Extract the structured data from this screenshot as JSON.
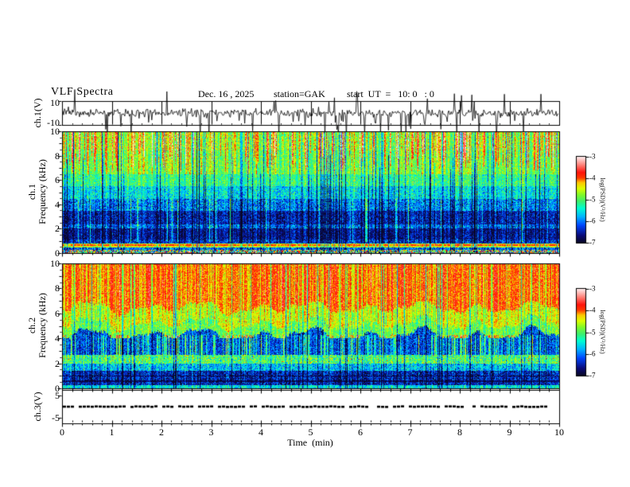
{
  "header": {
    "title": "VLF Spectra",
    "date": "Dec. 16 , 2025",
    "station": "station=GAK",
    "start_ut": "start  UT  =   10: 0   : 0"
  },
  "axes": {
    "time": {
      "label": "Time  (min)",
      "tick_labels": [
        "0",
        "1",
        "2",
        "3",
        "4",
        "5",
        "6",
        "7",
        "8",
        "9",
        "10"
      ],
      "tick_values": [
        0,
        1,
        2,
        3,
        4,
        5,
        6,
        7,
        8,
        9,
        10
      ],
      "minor_step": 0.2,
      "range": [
        0,
        10
      ]
    },
    "ch1_wave": {
      "label": "ch.1(V)",
      "tick_labels": [
        "10",
        "-10"
      ],
      "tick_values": [
        10,
        -10
      ],
      "range": [
        -10,
        10
      ]
    },
    "ch1_spec": {
      "label_channel": "ch.1",
      "label_axis": "Frequency (kHz)",
      "tick_labels": [
        "0",
        "2",
        "4",
        "6",
        "8",
        "10"
      ],
      "tick_values": [
        0,
        2,
        4,
        6,
        8,
        10
      ],
      "minor_step": 0.5,
      "range": [
        0,
        10
      ]
    },
    "ch2_spec": {
      "label_channel": "ch.2",
      "label_axis": "Frequency (kHz)",
      "tick_labels": [
        "0",
        "2",
        "4",
        "6",
        "8",
        "10"
      ],
      "tick_values": [
        0,
        2,
        4,
        6,
        8,
        10
      ],
      "minor_step": 0.5,
      "range": [
        0,
        10
      ]
    },
    "ch3_wave": {
      "label": "ch.3(V)",
      "tick_labels": [
        "5",
        "-5"
      ],
      "tick_values": [
        5,
        -5
      ],
      "range": [
        -7.5,
        7.5
      ]
    }
  },
  "colorbars": [
    {
      "label": "log(PSD)(V²/Hz)",
      "tick_labels": [
        "-3",
        "-4",
        "-5",
        "-6",
        "-7"
      ],
      "tick_values": [
        -3,
        -4,
        -5,
        -6,
        -7
      ],
      "range": [
        -7,
        -3
      ]
    },
    {
      "label": "log(PSD)(V²/Hz)",
      "tick_labels": [
        "-3",
        "-4",
        "-5",
        "-6",
        "-7"
      ],
      "tick_values": [
        -3,
        -4,
        -5,
        -6,
        -7
      ],
      "range": [
        -7,
        -3
      ]
    }
  ],
  "colors": {
    "background": "#ffffff",
    "axis": "#000000",
    "trace": "#000000",
    "colormap_low": "#080828",
    "colormap_mid": "#3cf06e",
    "colormap_high": "#ffebeb"
  },
  "chart_data": [
    {
      "id": "ch1_waveform",
      "type": "line",
      "panel": "wave",
      "description": "noisy broadband voltage trace centered at 0 V with impulsive spikes, several reaching -10 V",
      "xlim": [
        0,
        10
      ],
      "ylim": [
        -10,
        10
      ],
      "baseline_v": 0,
      "noise_sigma_v": 0.85,
      "spikes": {
        "count": 60,
        "min_v": 2,
        "max_v": 9,
        "negative_fraction": 0.72,
        "large_negative_count": 9
      }
    },
    {
      "id": "ch1_spectrogram",
      "type": "heatmap",
      "panel": "spec1",
      "xlim": [
        0,
        10
      ],
      "flim_khz": [
        0,
        10
      ],
      "zlim_log_psd": [
        -7,
        -3
      ],
      "bands": [
        {
          "f": [
            0,
            0.22
          ],
          "psd": -5.0,
          "noise": 2.0,
          "uniform": true
        },
        {
          "f": [
            0.22,
            0.45
          ],
          "psd": -6.1,
          "noise": 0.5
        },
        {
          "f": [
            0.45,
            0.75
          ],
          "psd": -4.55,
          "noise": 0.3
        },
        {
          "f": [
            0.75,
            1.1
          ],
          "psd": -6.35,
          "noise": 0.45
        },
        {
          "f": [
            1.1,
            2.0
          ],
          "psd": -6.6,
          "noise": 0.35
        },
        {
          "f": [
            2.0,
            2.35
          ],
          "psd": -6.1,
          "noise": 0.5
        },
        {
          "f": [
            2.35,
            3.5
          ],
          "psd": -6.5,
          "noise": 0.4
        },
        {
          "f": [
            3.5,
            4.5
          ],
          "psd": -6.0,
          "noise": 0.5
        },
        {
          "f": [
            4.5,
            5.5
          ],
          "psd": -5.55,
          "noise": 0.45
        },
        {
          "f": [
            5.5,
            6.5
          ],
          "psd": -5.15,
          "noise": 0.4
        },
        {
          "f": [
            6.5,
            8.5
          ],
          "psd": -4.95,
          "noise": 0.35
        },
        {
          "f": [
            8.5,
            10
          ],
          "psd": -4.8,
          "noise": 0.4
        }
      ],
      "hlines": [
        {
          "f": 0.62,
          "halfwidth": 0.05,
          "psd": -3.95
        }
      ],
      "streaks": {
        "dark_prob": 0.13,
        "dark_delta": -1.25,
        "top_prob": 0.22,
        "top_delta": 1.05,
        "top_fmin_base": 8.3,
        "top_fmin_jitter": 1.6,
        "upper_yellow_prob": 0.3,
        "upper_yellow_delta": 0.45,
        "upper_yellow_fmin": 6.5,
        "low_bright_prob": 0.05,
        "low_bright_delta": 0.9,
        "low_bright_fmax": 4.5,
        "col_noise": 0.32
      }
    },
    {
      "id": "ch2_spectrogram",
      "type": "heatmap",
      "panel": "spec2",
      "xlim": [
        0,
        10
      ],
      "flim_khz": [
        0,
        10
      ],
      "zlim_log_psd": [
        -7,
        -3
      ],
      "bands": [
        {
          "f": [
            0,
            0.25
          ],
          "psd": -5.5,
          "noise": 0.4
        },
        {
          "f": [
            0.25,
            1.4
          ],
          "psd": -6.45,
          "noise": 0.45
        },
        {
          "f": [
            1.4,
            2.0
          ],
          "psd": -5.7,
          "noise": 0.5
        },
        {
          "f": [
            2.0,
            2.65
          ],
          "psd": -5.0,
          "noise": 0.55
        },
        {
          "f": [
            2.65,
            4.3
          ],
          "psd": -6.2,
          "noise": 0.45
        },
        {
          "f": [
            4.3,
            5.2
          ],
          "psd": -4.85,
          "noise": 0.35
        },
        {
          "f": [
            5.2,
            6.5
          ],
          "psd": -4.4,
          "noise": 0.3
        },
        {
          "f": [
            6.5,
            10
          ],
          "psd": -3.88,
          "noise": 0.28
        }
      ],
      "hlines": [
        {
          "f": 0.95,
          "halfwidth": 0.04,
          "psd": -6.85
        },
        {
          "f": 0.55,
          "halfwidth": 0.04,
          "psd": -6.85
        }
      ],
      "wavy": {
        "boundary_range": [
          4.0,
          7.0
        ],
        "amp_khz": 0.55
      },
      "streaks": {
        "dark_prob": 0.09,
        "dark_delta": -1.0,
        "yellow_prob": 0.3,
        "yellow_delta": -0.4,
        "yellow_fmin": 5.8,
        "pink_prob": 0.05,
        "pink_delta": 0.35,
        "mid_bright_prob": 0.3,
        "mid_bright_delta": 1.0,
        "mid_bright_frange": [
          2.65,
          4.3
        ],
        "col_noise": 0.3
      }
    },
    {
      "id": "ch3_waveform",
      "type": "line",
      "panel": "ch3",
      "description": "flat thick dashed trace at 0 V ending near 9.85 min",
      "xlim": [
        0,
        10
      ],
      "ylim": [
        -7.5,
        7.5
      ],
      "value_v": 0,
      "trace_end_min": 9.85
    }
  ]
}
